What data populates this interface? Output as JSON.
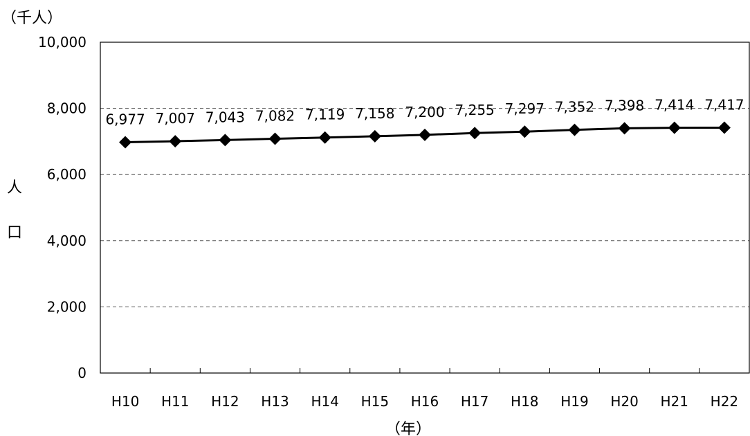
{
  "chart_data": {
    "type": "line",
    "unit_label": "（千人）",
    "ylabel": [
      "人",
      "口"
    ],
    "xlabel": "（年）",
    "categories": [
      "H10",
      "H11",
      "H12",
      "H13",
      "H14",
      "H15",
      "H16",
      "H17",
      "H18",
      "H19",
      "H20",
      "H21",
      "H22"
    ],
    "series": [
      {
        "values": [
          6977,
          7007,
          7043,
          7082,
          7119,
          7158,
          7200,
          7255,
          7297,
          7352,
          7398,
          7414,
          7417
        ]
      }
    ],
    "data_labels": [
      "6,977",
      "7,007",
      "7,043",
      "7,082",
      "7,119",
      "7,158",
      "7,200",
      "7,255",
      "7,297",
      "7,352",
      "7,398",
      "7,414",
      "7,417"
    ],
    "yticks": [
      0,
      2000,
      4000,
      6000,
      8000,
      10000
    ],
    "ytick_labels": [
      "0",
      "2,000",
      "4,000",
      "6,000",
      "8,000",
      "10,000"
    ],
    "ylim": [
      0,
      10000
    ],
    "grid": "horizontal-dashed",
    "legend": "none",
    "line_color": "#000000",
    "marker": "diamond"
  }
}
